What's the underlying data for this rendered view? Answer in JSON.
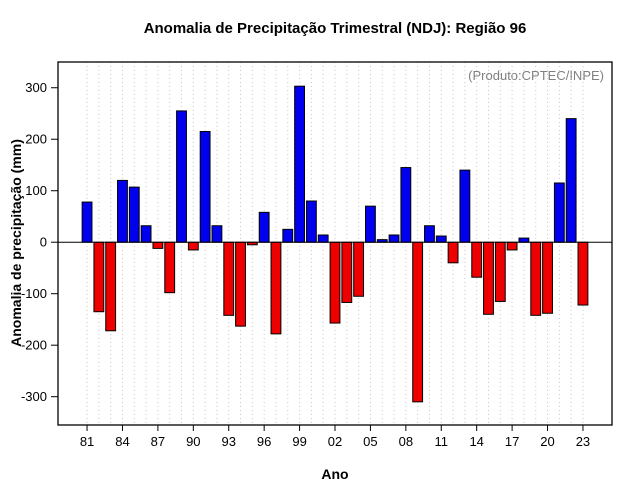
{
  "chart_data": {
    "type": "bar",
    "title": "Anomalia de Precipitação Trimestral (NDJ): Região 96",
    "annotation": "(Produto:CPTEC/INPE)",
    "xlabel": "Ano",
    "ylabel": "Anomalia de precipitação (mm)",
    "ylim": [
      -355,
      350
    ],
    "yticks": [
      -300,
      -200,
      -100,
      0,
      100,
      200,
      300
    ],
    "xticklabels": [
      "81",
      "84",
      "87",
      "90",
      "93",
      "96",
      "99",
      "02",
      "05",
      "08",
      "11",
      "14",
      "17",
      "20",
      "23"
    ],
    "categories": [
      "81",
      "82",
      "83",
      "84",
      "85",
      "86",
      "87",
      "88",
      "89",
      "90",
      "91",
      "92",
      "93",
      "94",
      "95",
      "96",
      "97",
      "98",
      "99",
      "00",
      "01",
      "02",
      "03",
      "04",
      "05",
      "06",
      "07",
      "08",
      "09",
      "10",
      "11",
      "12",
      "13",
      "14",
      "15",
      "16",
      "17",
      "18",
      "19",
      "20",
      "21",
      "22",
      "23"
    ],
    "values": [
      78,
      -135,
      -172,
      120,
      107,
      32,
      -12,
      -98,
      255,
      -15,
      215,
      32,
      -142,
      -163,
      -5,
      58,
      -178,
      25,
      303,
      80,
      14,
      -157,
      -117,
      -105,
      70,
      5,
      14,
      145,
      -310,
      32,
      12,
      -40,
      140,
      -68,
      -140,
      -115,
      -15,
      8,
      -142,
      -138,
      115,
      240,
      -122
    ],
    "positive_color": "#0000EE",
    "negative_color": "#EE0000",
    "bar_border_color": "#000000",
    "grid": "dotted-vertical",
    "grid_color": "#c8c8c8",
    "legend": "none"
  }
}
